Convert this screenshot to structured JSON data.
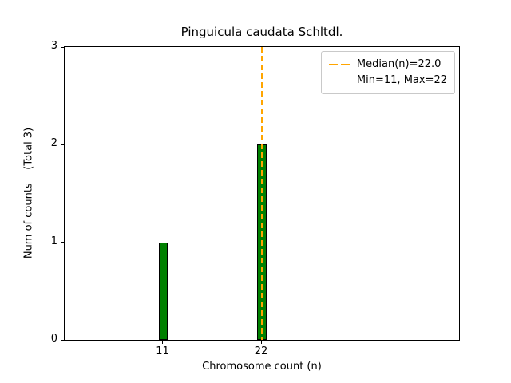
{
  "colors": {
    "bar_fill": "#008000",
    "bar_edge": "#000000",
    "median_line": "#FFA500",
    "axis": "#000000",
    "legend_border": "#c9c9c9"
  },
  "legend": {
    "entries": [
      "Median(n)=22.0",
      "Min=11, Max=22"
    ]
  },
  "chart_data": {
    "type": "bar",
    "title": "Pinguicula caudata Schltdl.",
    "xlabel": "Chromosome count (n)",
    "ylabel": "Num of counts    (Total 3)",
    "x": [
      11,
      22
    ],
    "values": [
      1,
      2
    ],
    "bar_width": 1,
    "xlim": [
      0,
      44
    ],
    "ylim": [
      0,
      3
    ],
    "x_ticks": [
      11,
      22
    ],
    "y_ticks": [
      0,
      1,
      2,
      3
    ],
    "median": 22.0,
    "min": 11,
    "max": 22,
    "total": 3,
    "grid": false,
    "legend_position": "upper right",
    "legend_entries": [
      "Median(n)=22.0",
      "Min=11, Max=22"
    ]
  }
}
